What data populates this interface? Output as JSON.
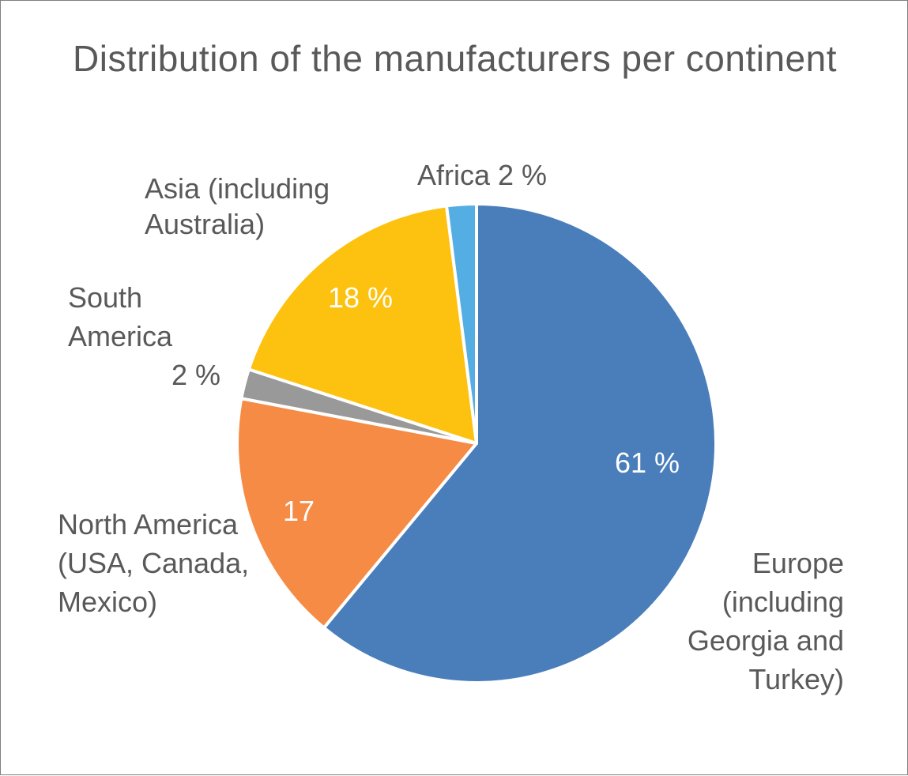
{
  "chart_data": {
    "type": "pie",
    "title": "Distribution of the manufacturers per continent",
    "slices": [
      {
        "label": "Europe (including Georgia and Turkey)",
        "label_lines": [
          "Europe",
          "(including",
          "Georgia and",
          "Turkey)"
        ],
        "value": 61,
        "value_label": "61 %",
        "color": "#4a7ebb"
      },
      {
        "label": "North America (USA, Canada, Mexico)",
        "label_lines": [
          "North  America",
          "(USA, Canada,",
          "Mexico)"
        ],
        "value": 17,
        "value_label": "17",
        "color": "#f58b45"
      },
      {
        "label": "South America 2 %",
        "label_lines": [
          "South",
          "America",
          "2 %"
        ],
        "value": 2,
        "value_label": "",
        "color": "#999999"
      },
      {
        "label": "Asia (including Australia)",
        "label_lines": [
          "Asia (including",
          "Australia)"
        ],
        "value": 18,
        "value_label": "18 %",
        "color": "#fdc20f"
      },
      {
        "label": "Africa 2 %",
        "label_lines": [
          "Africa 2 %"
        ],
        "value": 2,
        "value_label": "",
        "color": "#55aee3"
      }
    ]
  }
}
